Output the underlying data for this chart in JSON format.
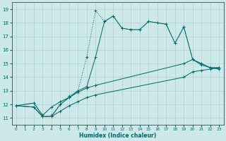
{
  "xlabel": "Humidex (Indice chaleur)",
  "background_color": "#cde8e8",
  "grid_color": "#b0d0d0",
  "line_color": "#006666",
  "xlim": [
    -0.5,
    23.5
  ],
  "ylim": [
    10.5,
    19.5
  ],
  "xticks": [
    0,
    1,
    2,
    3,
    4,
    5,
    6,
    7,
    8,
    9,
    10,
    11,
    12,
    13,
    14,
    15,
    16,
    17,
    18,
    19,
    20,
    21,
    22,
    23
  ],
  "yticks": [
    11,
    12,
    13,
    14,
    15,
    16,
    17,
    18,
    19
  ],
  "curve1_x": [
    0,
    2,
    3,
    4,
    5,
    6,
    7,
    8,
    9,
    10,
    11,
    12,
    13,
    14,
    15,
    16,
    17,
    18,
    19,
    20,
    21,
    22,
    23
  ],
  "curve1_y": [
    11.9,
    12.1,
    11.1,
    11.2,
    12.0,
    12.6,
    13.0,
    15.5,
    18.9,
    18.1,
    18.5,
    17.6,
    17.5,
    17.5,
    18.1,
    18.0,
    17.9,
    16.5,
    17.7,
    15.3,
    15.0,
    14.7,
    14.7
  ],
  "curve2_x": [
    0,
    2,
    3,
    4,
    5,
    6,
    7,
    8,
    9,
    10,
    11,
    12,
    13,
    14,
    15,
    16,
    17,
    18,
    19,
    20,
    21,
    22,
    23
  ],
  "curve2_y": [
    11.9,
    11.8,
    11.1,
    11.1,
    12.0,
    12.5,
    13.0,
    13.3,
    15.5,
    18.1,
    18.5,
    17.6,
    17.5,
    17.5,
    18.1,
    18.0,
    17.9,
    16.5,
    17.7,
    15.3,
    15.0,
    14.7,
    14.7
  ],
  "curve3_x": [
    0,
    2,
    3,
    4,
    5,
    6,
    7,
    8,
    9,
    19,
    20,
    21,
    22,
    23
  ],
  "curve3_y": [
    11.9,
    12.1,
    11.2,
    11.8,
    12.2,
    12.5,
    12.9,
    13.2,
    13.4,
    15.0,
    15.3,
    14.9,
    14.7,
    14.6
  ],
  "curve4_x": [
    0,
    2,
    3,
    4,
    5,
    6,
    7,
    8,
    9,
    19,
    20,
    21,
    22,
    23
  ],
  "curve4_y": [
    11.9,
    11.8,
    11.1,
    11.1,
    11.5,
    11.9,
    12.2,
    12.5,
    12.7,
    14.0,
    14.4,
    14.5,
    14.6,
    14.7
  ]
}
